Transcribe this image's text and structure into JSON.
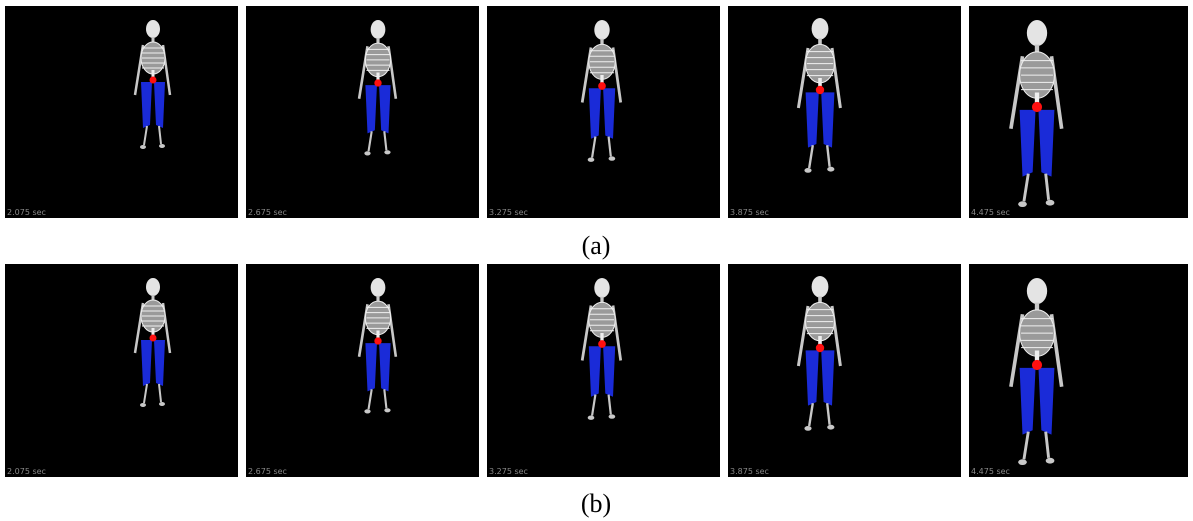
{
  "figure": {
    "rows": [
      {
        "times": [
          "2.075 sec",
          "2.675 sec",
          "3.275 sec",
          "3.875 sec",
          "4.475 sec"
        ],
        "caption": "(a)"
      },
      {
        "times": [
          "2.075 sec",
          "2.675 sec",
          "3.275 sec",
          "3.875 sec",
          "4.475 sec"
        ],
        "caption": "(b)"
      }
    ]
  }
}
